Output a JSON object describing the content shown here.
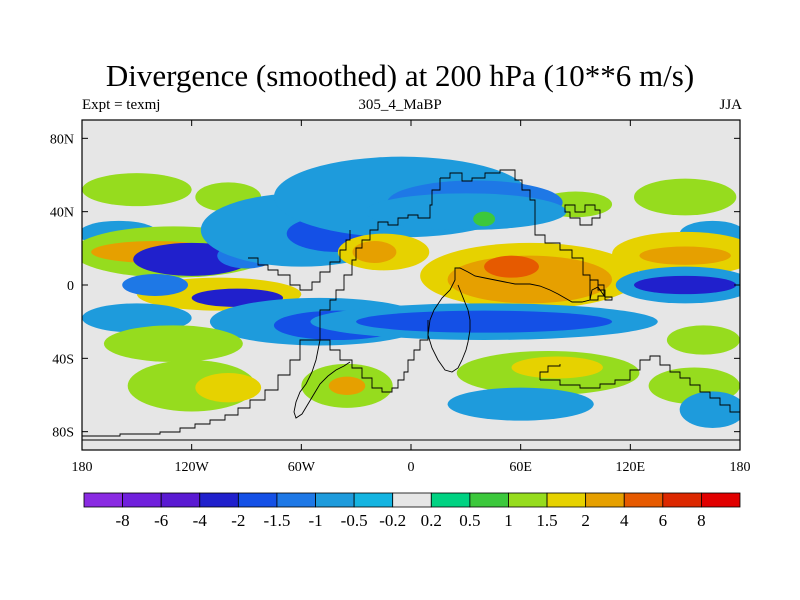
{
  "title": "Divergence (smoothed) at 200 hPa (10**6 m/s)",
  "subtitle_left": "Expt = texmj",
  "subtitle_center": "305_4_MaBP",
  "subtitle_right": "JJA",
  "chart_data": {
    "type": "filled-contour-map",
    "variable": "Divergence (smoothed) at 200 hPa",
    "units": "10**6 m/s",
    "experiment": "texmj",
    "run": "305_4_MaBP",
    "season": "JJA",
    "x_ticks": [
      {
        "lon": -180,
        "label": "180"
      },
      {
        "lon": -120,
        "label": "120W"
      },
      {
        "lon": -60,
        "label": "60W"
      },
      {
        "lon": 0,
        "label": "0"
      },
      {
        "lon": 60,
        "label": "60E"
      },
      {
        "lon": 120,
        "label": "120E"
      },
      {
        "lon": 180,
        "label": "180"
      }
    ],
    "y_ticks": [
      {
        "lat": 80,
        "label": "80N"
      },
      {
        "lat": 40,
        "label": "40N"
      },
      {
        "lat": 0,
        "label": "0"
      },
      {
        "lat": -40,
        "label": "40S"
      },
      {
        "lat": -80,
        "label": "80S"
      }
    ],
    "xlim": [
      -180,
      180
    ],
    "ylim": [
      -90,
      90
    ],
    "colorbar": {
      "labels": [
        "-8",
        "-6",
        "-4",
        "-2",
        "-1.5",
        "-1",
        "-0.5",
        "-0.2",
        "0.2",
        "0.5",
        "1",
        "1.5",
        "2",
        "4",
        "6",
        "8"
      ],
      "colors": [
        "#8a2be2",
        "#7020dc",
        "#5a1ad2",
        "#2020cc",
        "#1450e6",
        "#1e78e6",
        "#1e9bdc",
        "#14b4e1",
        "#e6e6e6",
        "#00d282",
        "#3cc83c",
        "#96dc1e",
        "#e6d200",
        "#e6a000",
        "#e65a00",
        "#dc2800",
        "#e10000"
      ]
    },
    "regions": [
      {
        "lon": 0,
        "lat": 0,
        "rx": 200,
        "ry": 95,
        "value": 0.0
      },
      {
        "lon": -150,
        "lat": 52,
        "rx": 30,
        "ry": 9,
        "value": 1.0
      },
      {
        "lon": -100,
        "lat": 48,
        "rx": 18,
        "ry": 8,
        "value": 1.0
      },
      {
        "lon": 150,
        "lat": 48,
        "rx": 28,
        "ry": 10,
        "value": 1.0
      },
      {
        "lon": 90,
        "lat": 44,
        "rx": 20,
        "ry": 7,
        "value": 1.0
      },
      {
        "lon": -160,
        "lat": 28,
        "rx": 22,
        "ry": 7,
        "value": -1.0
      },
      {
        "lon": 165,
        "lat": 28,
        "rx": 18,
        "ry": 7,
        "value": -1.0
      },
      {
        "lon": -130,
        "lat": 18,
        "rx": 55,
        "ry": 14,
        "value": 1.0
      },
      {
        "lon": -140,
        "lat": 18,
        "rx": 35,
        "ry": 6,
        "value": 2.0
      },
      {
        "lon": 150,
        "lat": 17,
        "rx": 40,
        "ry": 12,
        "value": 1.5
      },
      {
        "lon": 150,
        "lat": 16,
        "rx": 25,
        "ry": 5,
        "value": 2.0
      },
      {
        "lon": -120,
        "lat": 14,
        "rx": 32,
        "ry": 9,
        "value": -4.0
      },
      {
        "lon": -90,
        "lat": 16,
        "rx": 16,
        "ry": 7,
        "value": -1.5
      },
      {
        "lon": -60,
        "lat": 30,
        "rx": 55,
        "ry": 20,
        "value": -1.0
      },
      {
        "lon": -40,
        "lat": 28,
        "rx": 28,
        "ry": 10,
        "value": -2.0
      },
      {
        "lon": -5,
        "lat": 48,
        "rx": 70,
        "ry": 22,
        "value": -1.0
      },
      {
        "lon": 35,
        "lat": 45,
        "rx": 48,
        "ry": 12,
        "value": -1.5
      },
      {
        "lon": 30,
        "lat": 40,
        "rx": 55,
        "ry": 10,
        "value": -1.0
      },
      {
        "lon": 40,
        "lat": 36,
        "rx": 6,
        "ry": 4,
        "value": 0.5
      },
      {
        "lon": -15,
        "lat": 18,
        "rx": 25,
        "ry": 10,
        "value": 1.5
      },
      {
        "lon": -20,
        "lat": 18,
        "rx": 12,
        "ry": 6,
        "value": 2.0
      },
      {
        "lon": 65,
        "lat": 5,
        "rx": 60,
        "ry": 18,
        "value": 1.5
      },
      {
        "lon": 65,
        "lat": 3,
        "rx": 45,
        "ry": 13,
        "value": 2.0
      },
      {
        "lon": 55,
        "lat": 10,
        "rx": 15,
        "ry": 6,
        "value": 4.0
      },
      {
        "lon": 150,
        "lat": 0,
        "rx": 38,
        "ry": 10,
        "value": -1.0
      },
      {
        "lon": 150,
        "lat": 0,
        "rx": 28,
        "ry": 5,
        "value": -4.0
      },
      {
        "lon": -105,
        "lat": -5,
        "rx": 45,
        "ry": 9,
        "value": 1.5
      },
      {
        "lon": -140,
        "lat": 0,
        "rx": 18,
        "ry": 6,
        "value": -1.5
      },
      {
        "lon": -95,
        "lat": -7,
        "rx": 25,
        "ry": 5,
        "value": -4.0
      },
      {
        "lon": -50,
        "lat": -20,
        "rx": 60,
        "ry": 13,
        "value": -1.0
      },
      {
        "lon": -40,
        "lat": -22,
        "rx": 35,
        "ry": 8,
        "value": -2.0
      },
      {
        "lon": 40,
        "lat": -20,
        "rx": 95,
        "ry": 10,
        "value": -1.0
      },
      {
        "lon": 40,
        "lat": -20,
        "rx": 70,
        "ry": 6,
        "value": -2.0
      },
      {
        "lon": -150,
        "lat": -18,
        "rx": 30,
        "ry": 8,
        "value": -1.0
      },
      {
        "lon": -130,
        "lat": -32,
        "rx": 38,
        "ry": 10,
        "value": 1.0
      },
      {
        "lon": 160,
        "lat": -30,
        "rx": 20,
        "ry": 8,
        "value": 1.0
      },
      {
        "lon": -120,
        "lat": -55,
        "rx": 35,
        "ry": 14,
        "value": 1.0
      },
      {
        "lon": -100,
        "lat": -56,
        "rx": 18,
        "ry": 8,
        "value": 1.5
      },
      {
        "lon": -35,
        "lat": -55,
        "rx": 25,
        "ry": 12,
        "value": 1.0
      },
      {
        "lon": -35,
        "lat": -55,
        "rx": 10,
        "ry": 5,
        "value": 2.0
      },
      {
        "lon": 75,
        "lat": -48,
        "rx": 50,
        "ry": 12,
        "value": 1.0
      },
      {
        "lon": 80,
        "lat": -45,
        "rx": 25,
        "ry": 6,
        "value": 1.5
      },
      {
        "lon": 155,
        "lat": -55,
        "rx": 25,
        "ry": 10,
        "value": 1.0
      },
      {
        "lon": 60,
        "lat": -65,
        "rx": 40,
        "ry": 9,
        "value": -1.0
      },
      {
        "lon": 165,
        "lat": -68,
        "rx": 18,
        "ry": 10,
        "value": -1.0
      }
    ]
  }
}
